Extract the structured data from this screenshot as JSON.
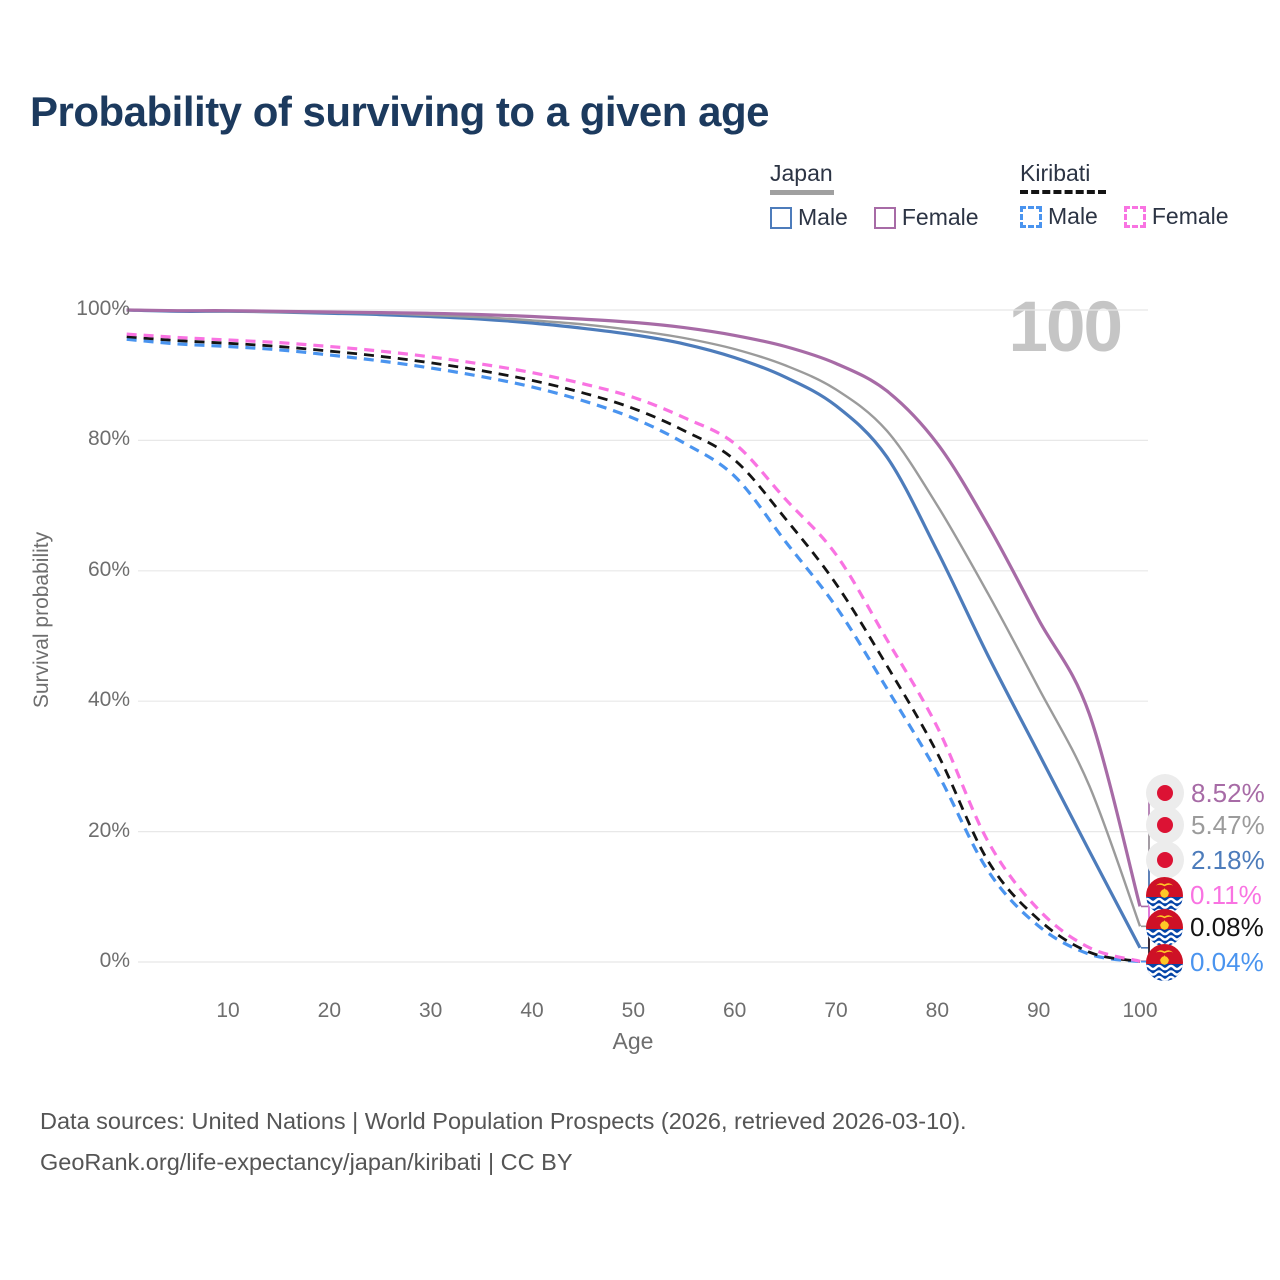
{
  "title": "Probability of surviving to a given age",
  "watermark": "100",
  "legend": {
    "groups": [
      {
        "label": "Japan",
        "line_style": "solid",
        "underline_color": "#a0a0a0",
        "items": [
          {
            "label": "Male",
            "color": "#4d7cbb",
            "dashed": false
          },
          {
            "label": "Female",
            "color": "#a76ba6",
            "dashed": false
          }
        ]
      },
      {
        "label": "Kiribati",
        "line_style": "dashed",
        "underline_color": "#141414",
        "items": [
          {
            "label": "Male",
            "color": "#4a94ef",
            "dashed": true
          },
          {
            "label": "Female",
            "color": "#f973e2",
            "dashed": true
          }
        ]
      }
    ]
  },
  "y_axis": {
    "label": "Survival probability",
    "ticks": [
      "0%",
      "20%",
      "40%",
      "60%",
      "80%",
      "100%"
    ]
  },
  "x_axis": {
    "label": "Age",
    "ticks": [
      "10",
      "20",
      "30",
      "40",
      "50",
      "60",
      "70",
      "80",
      "90",
      "100"
    ]
  },
  "footer": {
    "line1": "Data sources: United Nations | World Population Prospects (2026, retrieved 2026-03-10).",
    "line2": "GeoRank.org/life-expectancy/japan/kiribati | CC BY"
  },
  "chart_data": {
    "type": "line",
    "title": "Probability of surviving to a given age",
    "xlabel": "Age",
    "ylabel": "Survival probability",
    "x": [
      0,
      5,
      10,
      15,
      20,
      25,
      30,
      35,
      40,
      45,
      50,
      55,
      60,
      65,
      70,
      75,
      80,
      85,
      90,
      95,
      100
    ],
    "xlim": [
      0,
      110
    ],
    "ylim": [
      0,
      100
    ],
    "grid": "horizontal",
    "legend_position": "top-right",
    "series": [
      {
        "id": "japan-female",
        "name": "Japan Female",
        "country": "Japan",
        "sex": "Female",
        "color": "#a76ba6",
        "dash": "solid",
        "flag": "japan",
        "end_label": "8.52%",
        "values": [
          100,
          99.9,
          99.9,
          99.8,
          99.7,
          99.6,
          99.5,
          99.3,
          99.0,
          98.6,
          98.1,
          97.3,
          96.1,
          94.4,
          91.8,
          87.6,
          79.5,
          67.0,
          52.5,
          38.0,
          8.52
        ]
      },
      {
        "id": "japan-total",
        "name": "Japan",
        "country": "Japan",
        "sex": "Both",
        "color": "#9b9b9b",
        "dash": "solid",
        "flag": "japan",
        "end_label": "5.47%",
        "values": [
          100,
          99.9,
          99.8,
          99.7,
          99.6,
          99.5,
          99.2,
          98.9,
          98.4,
          97.8,
          96.9,
          95.7,
          94.0,
          91.5,
          87.8,
          81.5,
          70.0,
          56.5,
          42.0,
          27.0,
          5.47
        ]
      },
      {
        "id": "japan-male",
        "name": "Japan Male",
        "country": "Japan",
        "sex": "Male",
        "color": "#4d7cbb",
        "dash": "solid",
        "flag": "japan",
        "end_label": "2.18%",
        "values": [
          100,
          99.8,
          99.8,
          99.7,
          99.5,
          99.3,
          99.0,
          98.6,
          98.0,
          97.2,
          96.2,
          94.8,
          92.7,
          89.7,
          85.3,
          77.5,
          63.0,
          47.0,
          32.0,
          17.0,
          2.18
        ]
      },
      {
        "id": "kiribati-female",
        "name": "Kiribati Female",
        "country": "Kiribati",
        "sex": "Female",
        "color": "#f973e2",
        "dash": "dashed",
        "flag": "kiribati",
        "end_label": "0.11%",
        "values": [
          96.3,
          95.8,
          95.4,
          95.0,
          94.4,
          93.7,
          92.8,
          91.7,
          90.4,
          88.7,
          86.6,
          83.5,
          79.5,
          71.0,
          62.5,
          49.5,
          36.0,
          18.5,
          8.0,
          2.2,
          0.11
        ]
      },
      {
        "id": "kiribati-total",
        "name": "Kiribati",
        "country": "Kiribati",
        "sex": "Both",
        "color": "#141414",
        "dash": "dashed",
        "flag": "kiribati",
        "end_label": "0.08%",
        "values": [
          95.9,
          95.3,
          94.9,
          94.4,
          93.7,
          92.9,
          91.9,
          90.7,
          89.2,
          87.3,
          84.9,
          81.5,
          77.0,
          68.0,
          58.0,
          45.5,
          32.0,
          15.5,
          6.5,
          1.5,
          0.08
        ]
      },
      {
        "id": "kiribati-male",
        "name": "Kiribati Male",
        "country": "Kiribati",
        "sex": "Male",
        "color": "#4a94ef",
        "dash": "dashed",
        "flag": "kiribati",
        "end_label": "0.04%",
        "values": [
          95.5,
          94.8,
          94.4,
          93.9,
          93.1,
          92.2,
          91.1,
          89.8,
          88.2,
          86.1,
          83.4,
          79.6,
          74.5,
          64.5,
          54.5,
          42.0,
          29.0,
          14.0,
          5.5,
          1.2,
          0.04
        ]
      }
    ]
  },
  "flag_colors": {
    "japan_bg": "#ececec",
    "japan_sun": "#dc1234",
    "kiribati_red": "#CE1126",
    "kiribati_blue": "#0343a7",
    "kiribati_gold": "#ffc726",
    "kiribati_white": "#ffffff"
  }
}
